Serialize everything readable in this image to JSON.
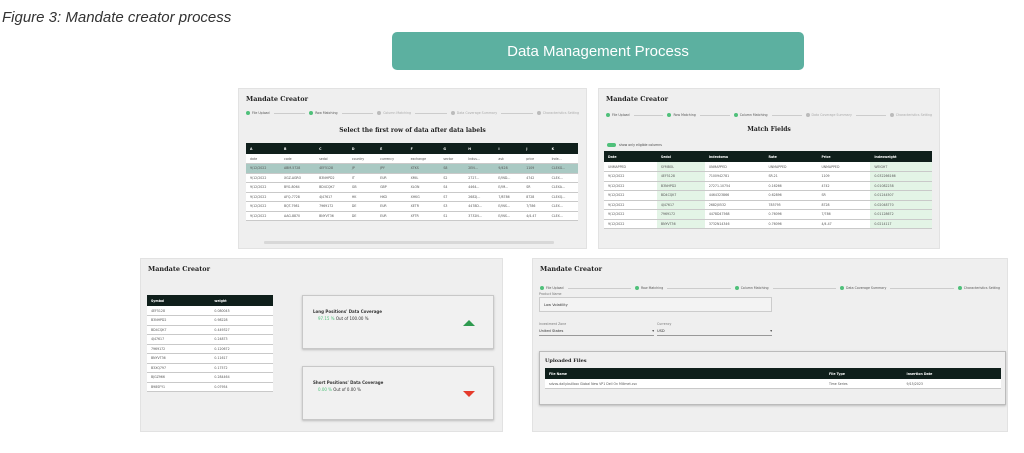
{
  "caption": "Figure 3: Mandate creator process",
  "banner": "Data Management Process",
  "app_title": "Mandate Creator",
  "steps": [
    "File Upload",
    "Row Matching",
    "Column Matching",
    "Data Coverage Summary",
    "Characteristics Setting"
  ],
  "panel1": {
    "subtitle": "Select the first row of data after data labels",
    "done_steps": 2,
    "headers": [
      "A",
      "B",
      "C",
      "D",
      "E",
      "F",
      "G",
      "H",
      "I",
      "J",
      "K"
    ],
    "rows": [
      [
        "date",
        "code",
        "sedol",
        "country",
        "currency",
        "exchange",
        "sector",
        "Indus...",
        "ask",
        "price",
        "Inde..."
      ],
      [
        "9/12/2022",
        "ABM-5728",
        "4EF5128",
        "JP",
        "JPY",
        "XTKS",
        "S8",
        "2EN...",
        "9/428",
        "1109",
        "CLEXG..."
      ],
      [
        "9/12/2022",
        "XGZ-AGRO",
        "B3NHPD2",
        "IT",
        "EUR",
        "XMIL",
        "S2",
        "2727...",
        "E/IND...",
        "4742",
        "CLEX..."
      ],
      [
        "9/12/2022",
        "BYG-8064",
        "BD4CQK7",
        "GB",
        "GBP",
        "XLON",
        "S4",
        "4464...",
        "E/IM...",
        "SR",
        "CLEXA..."
      ],
      [
        "9/12/2022",
        "AFQ-7728",
        "4J47617",
        "HK",
        "HKD",
        "XHKG",
        "S7",
        "2682J...",
        "7/8786",
        "8728",
        "CLEXQ..."
      ],
      [
        "9/12/2022",
        "BQT-7981",
        "7969172",
        "DE",
        "EUR",
        "XETR",
        "S3",
        "4478D...",
        "E/INS...",
        "7/786",
        "CLEX..."
      ],
      [
        "9/12/2022",
        "AAG-8870",
        "BNYVT36",
        "DE",
        "EUR",
        "XFTR",
        "S1",
        "3732N...",
        "E/INS...",
        "4/4.47",
        "CLEX..."
      ]
    ]
  },
  "panel2": {
    "subtitle": "Match Fields",
    "toggle_label": "show only eligible columns",
    "done_steps": 3,
    "headers": [
      "Date",
      "Sedol",
      "Indextoma",
      "Rate",
      "Price",
      "Indexweight"
    ],
    "rows": [
      [
        "UNMAPPED",
        "SYMBOL",
        "UNMAPPED",
        "UNMAPPED",
        "UNMAPPED",
        "WEIGHT"
      ],
      [
        "9/12/2022",
        "4EF5128",
        "7100942781",
        "SR.21",
        "1109",
        "0.032266166"
      ],
      [
        "9/12/2022",
        "B3NHPD2",
        "27271.10754",
        "0.16266",
        "4742",
        "0.01082238"
      ],
      [
        "9/12/2022",
        "BD4CQK7",
        "4464323866",
        "0.62896",
        "SR",
        "0.01244507"
      ],
      [
        "9/12/2022",
        "4J47617",
        "2682J0532",
        "785795",
        "8728",
        "0.02048770"
      ],
      [
        "9/12/2022",
        "7969172",
        "4478D47568",
        "0.76096",
        "7/786",
        "0.01128672"
      ],
      [
        "9/12/2022",
        "BNYVT36",
        "3732N14346",
        "0.76096",
        "4/4.47",
        "0.0214117"
      ]
    ]
  },
  "panel3": {
    "headers": [
      "Symbol",
      "weight"
    ],
    "rows": [
      [
        "4EF5128",
        "0.080045"
      ],
      [
        "B3NHPD2",
        "0.98228"
      ],
      [
        "BD4CQK7",
        "0.449327"
      ],
      [
        "4J47617",
        "0.24873"
      ],
      [
        "7969172",
        "0.120672"
      ],
      [
        "BNYVT36",
        "0.11617"
      ],
      [
        "B3XQ797",
        "0.17572"
      ],
      [
        "BJGZ966",
        "0.284464"
      ],
      [
        "B98SFY1",
        "0.07954"
      ]
    ],
    "long": {
      "title": "Long Positions' Data Coverage",
      "pct": "97.15 %",
      "out_of": "Out of 100.00 %"
    },
    "short": {
      "title": "Short Positions' Data Coverage",
      "pct": "0.00 %",
      "out_of": "Out of 0.00 %"
    }
  },
  "panel4": {
    "product_label": "Product Name",
    "product_value": "Low Volatility",
    "zone_label": "Investment Zone",
    "zone_value": "United States",
    "currency_label": "Currency",
    "currency_value": "USD",
    "uploaded_title": "Uploaded Files",
    "done_steps": 5,
    "headers": [
      "File Name",
      "File Type",
      "Insertion Date"
    ],
    "rows": [
      [
        "sdvos.daily.bullbox Global New VP1 Dell On Millmet.csv",
        "Time Series",
        "9/15/2023"
      ]
    ]
  },
  "colors": {
    "accent": "#5cb0a0",
    "header_dark": "#0f1f1b",
    "step_done": "#4fc07a",
    "up": "#2e9a4f",
    "down": "#e53b2c"
  }
}
